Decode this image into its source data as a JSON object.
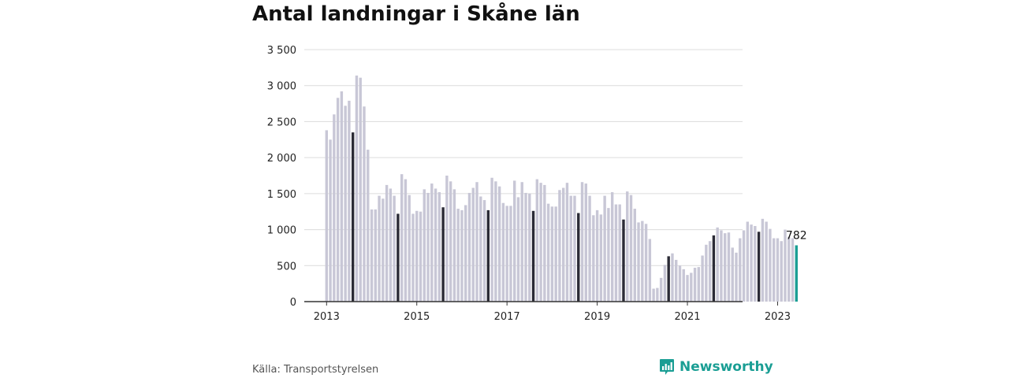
{
  "title": "Antal landningar i Skåne län",
  "source": "Källa: Transportstyrelsen",
  "brand": {
    "name": "Newsworthy",
    "icon": "bar-chart-icon"
  },
  "chart_data": {
    "type": "bar",
    "title": "Antal landningar i Skåne län",
    "ylim": [
      0,
      3500
    ],
    "yticks": [
      0,
      500,
      1000,
      1500,
      2000,
      2500,
      3000,
      3500
    ],
    "ytick_labels": [
      "0",
      "500",
      "1 000",
      "1 500",
      "2 000",
      "2 500",
      "3 000",
      "3 500"
    ],
    "xtick_labels": [
      "2013",
      "2015",
      "2017",
      "2019",
      "2021",
      "2023"
    ],
    "xtick_month_index": [
      0,
      24,
      48,
      72,
      96,
      120
    ],
    "grid": true,
    "start": "2013-01",
    "highlight_month": 7,
    "last_value_label": "782",
    "colors": {
      "bar": "#c8c7d6",
      "highlight": "#2b2b36",
      "last": "#1a9e94",
      "grid": "#dcdcdc",
      "axis": "#333333"
    },
    "values": [
      2380,
      2250,
      2600,
      2830,
      2920,
      2720,
      2790,
      2350,
      3140,
      3110,
      2710,
      2110,
      1280,
      1280,
      1470,
      1430,
      1620,
      1570,
      1470,
      1220,
      1770,
      1700,
      1480,
      1220,
      1260,
      1250,
      1560,
      1510,
      1640,
      1570,
      1520,
      1310,
      1750,
      1670,
      1560,
      1290,
      1270,
      1340,
      1510,
      1580,
      1660,
      1460,
      1410,
      1270,
      1720,
      1670,
      1600,
      1370,
      1330,
      1330,
      1680,
      1450,
      1660,
      1510,
      1500,
      1260,
      1700,
      1650,
      1620,
      1360,
      1320,
      1320,
      1550,
      1580,
      1650,
      1470,
      1470,
      1230,
      1660,
      1640,
      1470,
      1200,
      1270,
      1210,
      1470,
      1300,
      1520,
      1350,
      1350,
      1140,
      1530,
      1480,
      1290,
      1100,
      1120,
      1080,
      870,
      180,
      190,
      330,
      510,
      630,
      670,
      580,
      500,
      450,
      370,
      400,
      470,
      480,
      640,
      790,
      840,
      920,
      1030,
      990,
      950,
      960,
      750,
      680,
      880,
      990,
      1110,
      1070,
      1050,
      970,
      1150,
      1110,
      1010,
      880,
      880,
      840,
      1000,
      900,
      880,
      782
    ]
  }
}
